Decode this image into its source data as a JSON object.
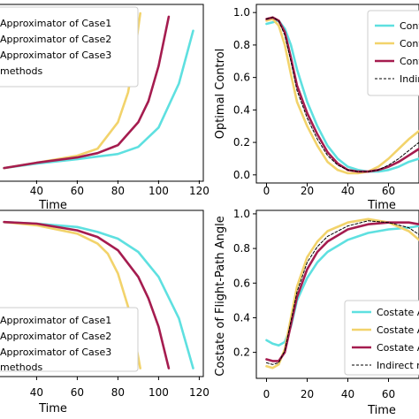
{
  "chart_data": [
    {
      "type": "line",
      "xlabel": "Time",
      "ylabel": "",
      "xticks": [
        "40",
        "60",
        "80",
        "100",
        "120"
      ],
      "yticks": [],
      "legend": {
        "placement": "top-left",
        "entries": [
          "Approximator of Case1",
          "Approximator of Case2",
          "Approximator of Case3",
          "methods"
        ]
      },
      "series": [
        {
          "name": "Approximator of Case1",
          "color": "#5ee0e0",
          "x": [
            24,
            40,
            60,
            70,
            80,
            90,
            100,
            110,
            117
          ],
          "y": [
            0.07,
            0.095,
            0.12,
            0.135,
            0.15,
            0.19,
            0.3,
            0.55,
            0.85
          ]
        },
        {
          "name": "Approximator of Case2",
          "color": "#f2d36b",
          "x": [
            24,
            40,
            60,
            70,
            80,
            85,
            88,
            91
          ],
          "y": [
            0.07,
            0.1,
            0.14,
            0.18,
            0.33,
            0.5,
            0.7,
            0.95
          ]
        },
        {
          "name": "Approximator of Case3",
          "color": "#a51c4f",
          "x": [
            24,
            40,
            60,
            70,
            80,
            90,
            95,
            100,
            105
          ],
          "y": [
            0.07,
            0.1,
            0.13,
            0.155,
            0.2,
            0.33,
            0.45,
            0.65,
            0.93
          ]
        },
        {
          "name": "methods",
          "color": "#000000",
          "dashed": true,
          "x": [],
          "y": []
        }
      ]
    },
    {
      "type": "line",
      "xlabel": "Time",
      "ylabel": "Optimal Control",
      "xlim": [
        -5,
        75
      ],
      "ylim": [
        -0.05,
        1.05
      ],
      "xticks": [
        "0",
        "20",
        "40",
        "60"
      ],
      "yticks": [
        "0.0",
        "0.2",
        "0.4",
        "0.6",
        "0.8",
        "1.0"
      ],
      "legend": {
        "placement": "top-right",
        "entries": [
          "Cont",
          "Cont",
          "Cont",
          "Indire"
        ]
      },
      "series": [
        {
          "name": "Cont",
          "color": "#5ee0e0",
          "x": [
            0,
            3,
            6,
            9,
            12,
            15,
            20,
            25,
            30,
            35,
            40,
            45,
            50,
            55,
            60,
            65,
            70,
            75
          ],
          "y": [
            0.93,
            0.94,
            0.95,
            0.9,
            0.8,
            0.65,
            0.45,
            0.3,
            0.18,
            0.1,
            0.05,
            0.03,
            0.02,
            0.02,
            0.03,
            0.05,
            0.08,
            0.1
          ]
        },
        {
          "name": "Cont",
          "color": "#f2d36b",
          "x": [
            0,
            3,
            6,
            9,
            12,
            15,
            20,
            25,
            30,
            35,
            40,
            45,
            50,
            55,
            60,
            65,
            70,
            75
          ],
          "y": [
            0.95,
            0.96,
            0.92,
            0.8,
            0.62,
            0.45,
            0.3,
            0.18,
            0.08,
            0.03,
            0.01,
            0.01,
            0.02,
            0.05,
            0.1,
            0.16,
            0.22,
            0.27
          ]
        },
        {
          "name": "Cont",
          "color": "#a51c4f",
          "x": [
            0,
            3,
            6,
            9,
            12,
            15,
            20,
            25,
            30,
            35,
            40,
            45,
            50,
            55,
            60,
            65,
            70,
            75
          ],
          "y": [
            0.96,
            0.97,
            0.95,
            0.88,
            0.72,
            0.55,
            0.38,
            0.25,
            0.14,
            0.07,
            0.03,
            0.02,
            0.02,
            0.03,
            0.05,
            0.08,
            0.12,
            0.16
          ]
        },
        {
          "name": "Indire",
          "color": "#000000",
          "dashed": true,
          "x": [
            0,
            3,
            6,
            9,
            12,
            15,
            20,
            25,
            30,
            35,
            40,
            45,
            50,
            55,
            60,
            65,
            70,
            75
          ],
          "y": [
            0.96,
            0.97,
            0.95,
            0.86,
            0.7,
            0.52,
            0.35,
            0.22,
            0.12,
            0.06,
            0.03,
            0.02,
            0.02,
            0.03,
            0.06,
            0.1,
            0.15,
            0.2
          ]
        }
      ]
    },
    {
      "type": "line",
      "xlabel": "Time",
      "ylabel": "",
      "xticks": [
        "40",
        "60",
        "80",
        "100",
        "120"
      ],
      "yticks": [],
      "legend": {
        "placement": "bottom-left",
        "entries": [
          "Approximator of Case1",
          "Approximator of Case2",
          "Approximator of Case3",
          "methods"
        ]
      },
      "series": [
        {
          "name": "Approximator of Case1",
          "color": "#5ee0e0",
          "x": [
            24,
            40,
            60,
            70,
            80,
            90,
            100,
            110,
            117
          ],
          "y": [
            0.93,
            0.92,
            0.9,
            0.87,
            0.83,
            0.75,
            0.6,
            0.35,
            0.05
          ]
        },
        {
          "name": "Approximator of Case2",
          "color": "#f2d36b",
          "x": [
            24,
            40,
            60,
            70,
            75,
            80,
            85,
            88,
            91
          ],
          "y": [
            0.93,
            0.91,
            0.86,
            0.8,
            0.74,
            0.62,
            0.42,
            0.25,
            0.05
          ]
        },
        {
          "name": "Approximator of Case3",
          "color": "#a51c4f",
          "x": [
            24,
            40,
            60,
            70,
            80,
            90,
            95,
            100,
            105
          ],
          "y": [
            0.93,
            0.92,
            0.88,
            0.84,
            0.76,
            0.6,
            0.47,
            0.3,
            0.05
          ]
        },
        {
          "name": "methods",
          "color": "#000000",
          "dashed": true,
          "x": [],
          "y": []
        }
      ]
    },
    {
      "type": "line",
      "xlabel": "Time",
      "ylabel": "Costate of Flight-Path Angle",
      "xlim": [
        -5,
        75
      ],
      "ylim": [
        0.05,
        1.02
      ],
      "xticks": [
        "0",
        "20",
        "40",
        "60"
      ],
      "yticks": [
        "0.2",
        "0.4",
        "0.6",
        "0.8",
        "1.0"
      ],
      "legend": {
        "placement": "bottom-right",
        "entries": [
          "Costate A",
          "Costate A",
          "Costate A",
          "Indirect n"
        ]
      },
      "series": [
        {
          "name": "Costate A",
          "color": "#5ee0e0",
          "x": [
            0,
            3,
            6,
            9,
            12,
            15,
            20,
            25,
            30,
            40,
            50,
            60,
            70,
            75
          ],
          "y": [
            0.27,
            0.25,
            0.24,
            0.26,
            0.35,
            0.5,
            0.63,
            0.72,
            0.78,
            0.85,
            0.89,
            0.91,
            0.92,
            0.93
          ]
        },
        {
          "name": "Costate A",
          "color": "#f2d36b",
          "x": [
            0,
            3,
            6,
            9,
            12,
            15,
            20,
            25,
            30,
            40,
            50,
            60,
            70,
            75
          ],
          "y": [
            0.12,
            0.11,
            0.13,
            0.22,
            0.4,
            0.58,
            0.75,
            0.84,
            0.9,
            0.95,
            0.97,
            0.95,
            0.9,
            0.85
          ]
        },
        {
          "name": "Costate A",
          "color": "#a51c4f",
          "x": [
            0,
            3,
            6,
            9,
            12,
            15,
            20,
            25,
            30,
            40,
            50,
            60,
            70,
            75
          ],
          "y": [
            0.16,
            0.15,
            0.15,
            0.2,
            0.36,
            0.52,
            0.68,
            0.78,
            0.84,
            0.91,
            0.94,
            0.95,
            0.95,
            0.94
          ]
        },
        {
          "name": "Indirect n",
          "color": "#000000",
          "dashed": true,
          "x": [
            0,
            3,
            6,
            9,
            12,
            15,
            20,
            25,
            30,
            40,
            50,
            60,
            70,
            75
          ],
          "y": [
            0.14,
            0.13,
            0.14,
            0.21,
            0.38,
            0.55,
            0.72,
            0.81,
            0.87,
            0.93,
            0.96,
            0.95,
            0.92,
            0.88
          ]
        }
      ]
    }
  ]
}
